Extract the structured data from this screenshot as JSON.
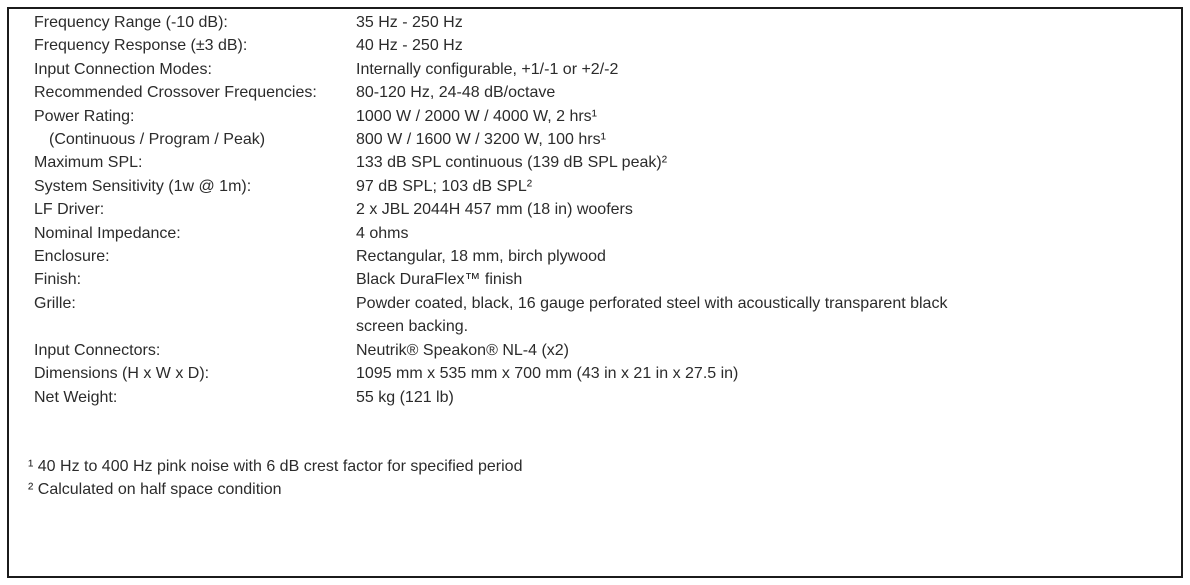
{
  "colors": {
    "background": "#ffffff",
    "border": "#1b1b1b",
    "text": "#2b2b2b"
  },
  "spec_table": {
    "rows": [
      {
        "label": "Frequency Range (-10 dB):",
        "value": "35 Hz - 250 Hz",
        "indent": false
      },
      {
        "label": "Frequency Response (±3 dB):",
        "value": "40 Hz - 250 Hz",
        "indent": false
      },
      {
        "label": "Input Connection Modes:",
        "value": "Internally configurable, +1/-1 or +2/-2",
        "indent": false
      },
      {
        "label": "Recommended Crossover Frequencies:",
        "value": "80-120 Hz, 24-48 dB/octave",
        "indent": false
      },
      {
        "label": "Power Rating:",
        "value": "1000 W / 2000 W / 4000 W, 2 hrs¹",
        "indent": false
      },
      {
        "label": "(Continuous / Program / Peak)",
        "value": "800 W / 1600 W / 3200 W, 100 hrs¹",
        "indent": true
      },
      {
        "label": "Maximum SPL:",
        "value": "133 dB SPL continuous (139 dB SPL peak)²",
        "indent": false
      },
      {
        "label": "System Sensitivity (1w @ 1m):",
        "value": "97 dB SPL; 103 dB SPL²",
        "indent": false
      },
      {
        "label": "LF Driver:",
        "value": "2 x JBL 2044H 457 mm (18 in) woofers",
        "indent": false
      },
      {
        "label": "Nominal Impedance:",
        "value": "4 ohms",
        "indent": false
      },
      {
        "label": "Enclosure:",
        "value": "Rectangular, 18 mm, birch plywood",
        "indent": false
      },
      {
        "label": "Finish:",
        "value": "Black DuraFlex™ finish",
        "indent": false
      },
      {
        "label": "Grille:",
        "value": "Powder coated, black, 16 gauge perforated steel with acoustically transparent black screen backing.",
        "indent": false
      },
      {
        "label": "Input Connectors:",
        "value": "Neutrik® Speakon® NL-4 (x2)",
        "indent": false
      },
      {
        "label": "Dimensions (H x W x D):",
        "value": "1095 mm x 535 mm x 700 mm (43 in x 21 in x 27.5 in)",
        "indent": false
      },
      {
        "label": "Net Weight:",
        "value": "55 kg (121 lb)",
        "indent": false
      }
    ],
    "footnotes": [
      "¹ 40 Hz to 400 Hz pink noise with 6 dB crest factor for specified period",
      "² Calculated on half space condition"
    ]
  }
}
